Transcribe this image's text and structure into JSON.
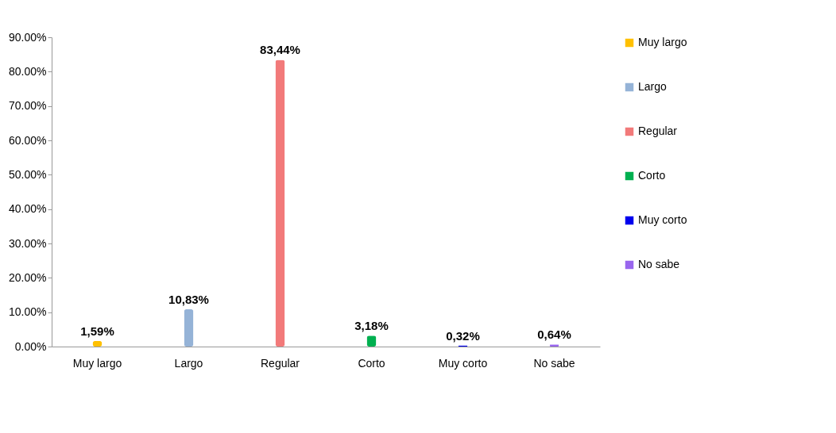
{
  "chart_data": {
    "type": "bar",
    "categories": [
      "Muy largo",
      "Largo",
      "Regular",
      "Corto",
      "Muy corto",
      "No sabe"
    ],
    "series": [
      {
        "name": "Muy largo",
        "color": "#ffc000",
        "values": [
          1.59,
          null,
          null,
          null,
          null,
          null
        ],
        "value_labels": [
          "1,59%",
          null,
          null,
          null,
          null,
          null
        ]
      },
      {
        "name": "Largo",
        "color": "#95b3d7",
        "values": [
          null,
          10.83,
          null,
          null,
          null,
          null
        ],
        "value_labels": [
          null,
          "10,83%",
          null,
          null,
          null,
          null
        ]
      },
      {
        "name": "Regular",
        "color": "#f27a7a",
        "values": [
          null,
          null,
          83.44,
          null,
          null,
          null
        ],
        "value_labels": [
          null,
          null,
          "83,44%",
          null,
          null,
          null
        ]
      },
      {
        "name": "Corto",
        "color": "#00b050",
        "values": [
          null,
          null,
          null,
          3.18,
          null,
          null
        ],
        "value_labels": [
          null,
          null,
          null,
          "3,18%",
          null,
          null
        ]
      },
      {
        "name": "Muy corto",
        "color": "#0000ee",
        "values": [
          null,
          null,
          null,
          null,
          0.32,
          null
        ],
        "value_labels": [
          null,
          null,
          null,
          null,
          "0,32%",
          null
        ]
      },
      {
        "name": "No sabe",
        "color": "#9966ee",
        "values": [
          null,
          null,
          null,
          null,
          null,
          0.64
        ],
        "value_labels": [
          null,
          null,
          null,
          null,
          null,
          "0,64%"
        ]
      }
    ],
    "ylim": [
      0,
      90
    ],
    "yticks": [
      {
        "value": 0,
        "label": "0.00%"
      },
      {
        "value": 10,
        "label": "10.00%"
      },
      {
        "value": 20,
        "label": "20.00%"
      },
      {
        "value": 30,
        "label": "30.00%"
      },
      {
        "value": 40,
        "label": "40.00%"
      },
      {
        "value": 50,
        "label": "50.00%"
      },
      {
        "value": 60,
        "label": "60.00%"
      },
      {
        "value": 70,
        "label": "70.00%"
      },
      {
        "value": 80,
        "label": "80.00%"
      },
      {
        "value": 90,
        "label": "90.00%"
      }
    ],
    "legend": "right",
    "grid": false
  }
}
